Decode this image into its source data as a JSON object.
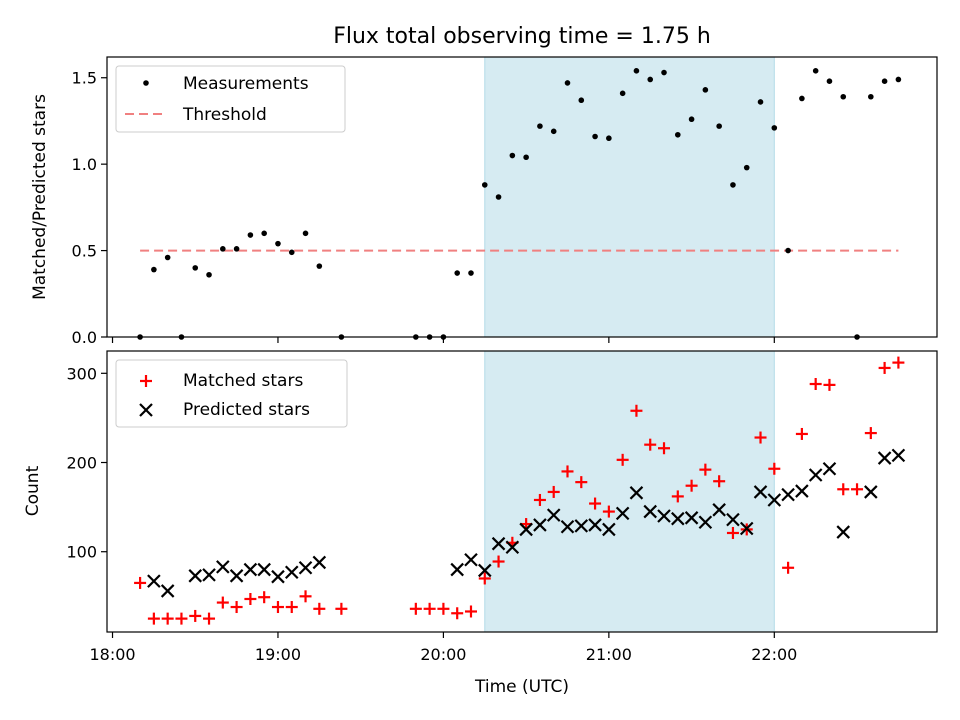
{
  "chart_data": {
    "title": "Flux total observing time = 1.75 h",
    "xlabel": "Time (UTC)",
    "x_ticks": [
      "18:00",
      "19:00",
      "20:00",
      "21:00",
      "22:00"
    ],
    "x_range": [
      "17:58",
      "22:59"
    ],
    "shaded_interval": [
      "20:15",
      "22:00"
    ],
    "shade_color": "#add8e6",
    "panels": [
      {
        "type": "scatter",
        "ylabel": "Matched/Predicted stars",
        "ylim": [
          0,
          1.62
        ],
        "y_ticks": [
          "0.0",
          "0.5",
          "1.0",
          "1.5"
        ],
        "legend_position": "upper-left",
        "series": [
          {
            "name": "Measurements",
            "marker": "dot",
            "color": "#000000",
            "points": [
              [
                "18:10",
                0.0
              ],
              [
                "18:15",
                0.39
              ],
              [
                "18:20",
                0.46
              ],
              [
                "18:25",
                0.0
              ],
              [
                "18:30",
                0.4
              ],
              [
                "18:35",
                0.36
              ],
              [
                "18:40",
                0.51
              ],
              [
                "18:45",
                0.51
              ],
              [
                "18:50",
                0.59
              ],
              [
                "18:55",
                0.6
              ],
              [
                "19:00",
                0.54
              ],
              [
                "19:05",
                0.49
              ],
              [
                "19:10",
                0.6
              ],
              [
                "19:15",
                0.41
              ],
              [
                "19:23",
                0.0
              ],
              [
                "19:50",
                0.0
              ],
              [
                "19:55",
                0.0
              ],
              [
                "20:00",
                0.0
              ],
              [
                "20:05",
                0.37
              ],
              [
                "20:10",
                0.37
              ],
              [
                "20:15",
                0.88
              ],
              [
                "20:20",
                0.81
              ],
              [
                "20:25",
                1.05
              ],
              [
                "20:30",
                1.04
              ],
              [
                "20:35",
                1.22
              ],
              [
                "20:40",
                1.19
              ],
              [
                "20:45",
                1.47
              ],
              [
                "20:50",
                1.37
              ],
              [
                "20:55",
                1.16
              ],
              [
                "21:00",
                1.15
              ],
              [
                "21:05",
                1.41
              ],
              [
                "21:10",
                1.54
              ],
              [
                "21:15",
                1.49
              ],
              [
                "21:20",
                1.53
              ],
              [
                "21:25",
                1.17
              ],
              [
                "21:30",
                1.26
              ],
              [
                "21:35",
                1.43
              ],
              [
                "21:40",
                1.22
              ],
              [
                "21:45",
                0.88
              ],
              [
                "21:50",
                0.98
              ],
              [
                "21:55",
                1.36
              ],
              [
                "22:00",
                1.21
              ],
              [
                "22:05",
                0.5
              ],
              [
                "22:10",
                1.38
              ],
              [
                "22:15",
                1.54
              ],
              [
                "22:20",
                1.48
              ],
              [
                "22:25",
                1.39
              ],
              [
                "22:30",
                0.0
              ],
              [
                "22:35",
                1.39
              ],
              [
                "22:40",
                1.48
              ],
              [
                "22:45",
                1.49
              ]
            ]
          },
          {
            "name": "Threshold",
            "marker": "dashed-line",
            "color": "#f08080",
            "points": [
              [
                "18:10",
                0.5
              ],
              [
                "22:45",
                0.5
              ]
            ]
          }
        ]
      },
      {
        "type": "scatter",
        "ylabel": "Count",
        "ylim": [
          10,
          325
        ],
        "y_ticks": [
          "100",
          "200",
          "300"
        ],
        "legend_position": "upper-left",
        "series": [
          {
            "name": "Matched stars",
            "marker": "plus",
            "color": "#ff0000",
            "points": [
              [
                "18:10",
                65
              ],
              [
                "18:15",
                25
              ],
              [
                "18:20",
                25
              ],
              [
                "18:25",
                25
              ],
              [
                "18:30",
                28
              ],
              [
                "18:35",
                25
              ],
              [
                "18:40",
                43
              ],
              [
                "18:45",
                38
              ],
              [
                "18:50",
                47
              ],
              [
                "18:55",
                49
              ],
              [
                "19:00",
                38
              ],
              [
                "19:05",
                38
              ],
              [
                "19:10",
                50
              ],
              [
                "19:15",
                36
              ],
              [
                "19:23",
                36
              ],
              [
                "19:50",
                36
              ],
              [
                "19:55",
                36
              ],
              [
                "20:00",
                36
              ],
              [
                "20:05",
                31
              ],
              [
                "20:10",
                33
              ],
              [
                "20:15",
                70
              ],
              [
                "20:20",
                89
              ],
              [
                "20:25",
                110
              ],
              [
                "20:30",
                131
              ],
              [
                "20:35",
                158
              ],
              [
                "20:40",
                167
              ],
              [
                "20:45",
                190
              ],
              [
                "20:50",
                178
              ],
              [
                "20:55",
                154
              ],
              [
                "21:00",
                145
              ],
              [
                "21:05",
                203
              ],
              [
                "21:10",
                258
              ],
              [
                "21:15",
                220
              ],
              [
                "21:20",
                216
              ],
              [
                "21:25",
                162
              ],
              [
                "21:30",
                174
              ],
              [
                "21:35",
                192
              ],
              [
                "21:40",
                179
              ],
              [
                "21:45",
                121
              ],
              [
                "21:50",
                125
              ],
              [
                "21:55",
                228
              ],
              [
                "22:00",
                193
              ],
              [
                "22:05",
                82
              ],
              [
                "22:10",
                232
              ],
              [
                "22:15",
                288
              ],
              [
                "22:20",
                287
              ],
              [
                "22:25",
                170
              ],
              [
                "22:30",
                170
              ],
              [
                "22:35",
                233
              ],
              [
                "22:40",
                306
              ],
              [
                "22:45",
                312
              ]
            ]
          },
          {
            "name": "Predicted stars",
            "marker": "x",
            "color": "#000000",
            "points": [
              [
                "18:15",
                67
              ],
              [
                "18:20",
                56
              ],
              [
                "18:30",
                73
              ],
              [
                "18:35",
                74
              ],
              [
                "18:40",
                83
              ],
              [
                "18:45",
                73
              ],
              [
                "18:50",
                80
              ],
              [
                "18:55",
                80
              ],
              [
                "19:00",
                72
              ],
              [
                "19:05",
                77
              ],
              [
                "19:10",
                82
              ],
              [
                "19:15",
                88
              ],
              [
                "20:05",
                80
              ],
              [
                "20:10",
                91
              ],
              [
                "20:15",
                79
              ],
              [
                "20:20",
                109
              ],
              [
                "20:25",
                105
              ],
              [
                "20:30",
                125
              ],
              [
                "20:35",
                130
              ],
              [
                "20:40",
                141
              ],
              [
                "20:45",
                128
              ],
              [
                "20:50",
                129
              ],
              [
                "20:55",
                130
              ],
              [
                "21:00",
                125
              ],
              [
                "21:05",
                143
              ],
              [
                "21:10",
                166
              ],
              [
                "21:15",
                145
              ],
              [
                "21:20",
                140
              ],
              [
                "21:25",
                137
              ],
              [
                "21:30",
                138
              ],
              [
                "21:35",
                133
              ],
              [
                "21:40",
                147
              ],
              [
                "21:45",
                136
              ],
              [
                "21:50",
                126
              ],
              [
                "21:55",
                167
              ],
              [
                "22:00",
                158
              ],
              [
                "22:05",
                164
              ],
              [
                "22:10",
                168
              ],
              [
                "22:15",
                186
              ],
              [
                "22:20",
                193
              ],
              [
                "22:25",
                122
              ],
              [
                "22:35",
                167
              ],
              [
                "22:40",
                205
              ],
              [
                "22:45",
                208
              ]
            ]
          }
        ]
      }
    ]
  }
}
